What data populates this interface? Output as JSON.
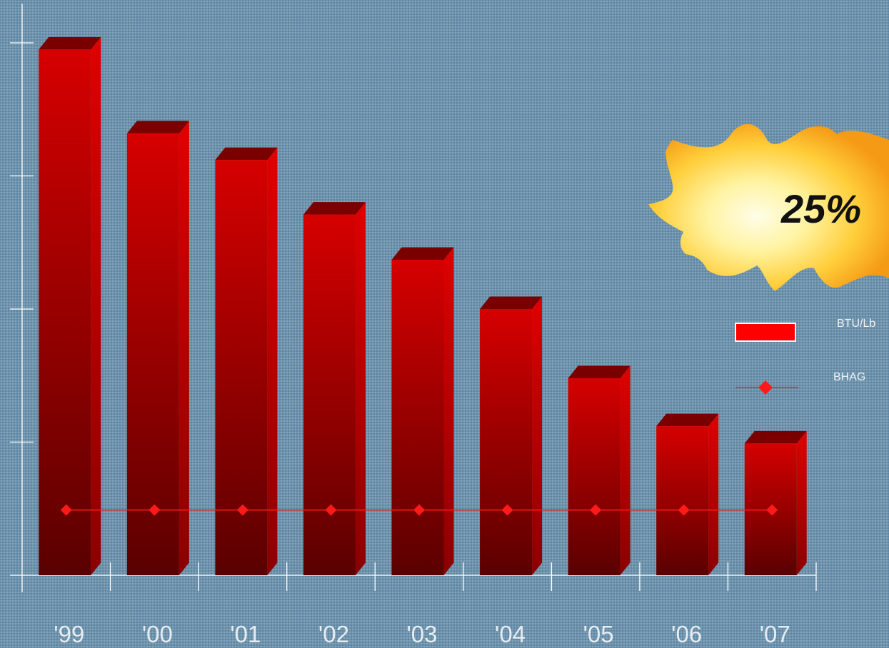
{
  "chart_data": {
    "type": "bar",
    "categories": [
      "'99",
      "'00",
      "'01",
      "'02",
      "'03",
      "'04",
      "'05",
      "'06",
      "'07"
    ],
    "series": [
      {
        "name": "BTU/Lb",
        "kind": "bar",
        "color": "#d10000",
        "values": [
          3.95,
          3.32,
          3.12,
          2.71,
          2.37,
          2.0,
          1.48,
          1.12,
          0.99
        ]
      },
      {
        "name": "BHAG",
        "kind": "line",
        "color": "#ff1a1a",
        "values": [
          0.49,
          0.49,
          0.49,
          0.49,
          0.49,
          0.49,
          0.49,
          0.49,
          0.49
        ]
      }
    ],
    "ylim": [
      0,
      4
    ],
    "y_tick_labels_shown": false,
    "legend_position": "right",
    "annotation": "25%",
    "annotation_style": "starburst"
  }
}
